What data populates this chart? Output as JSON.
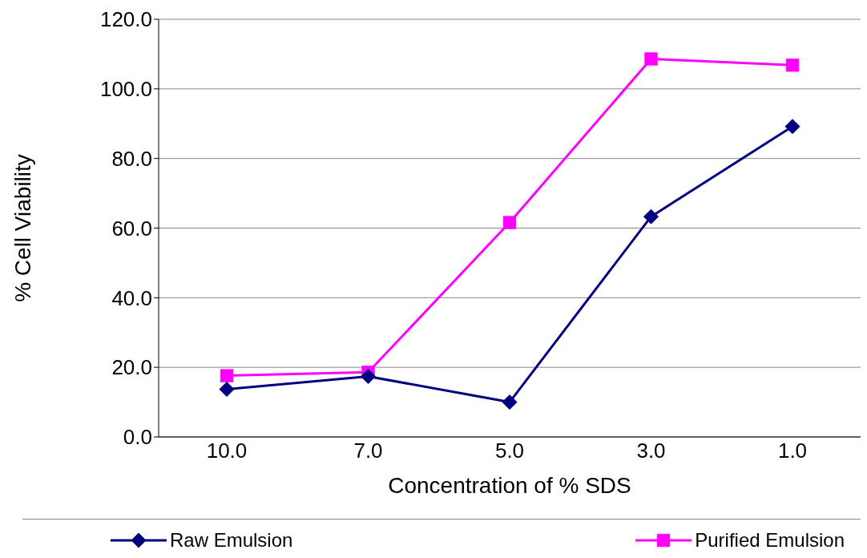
{
  "chart_data": {
    "type": "line",
    "xlabel": "Concentration of % SDS",
    "ylabel": "% Cell Viability",
    "categories": [
      "10.0",
      "7.0",
      "5.0",
      "3.0",
      "1.0"
    ],
    "series": [
      {
        "name": "Raw Emulsion",
        "color": "#000080",
        "marker": "diamond",
        "values": [
          13.7,
          17.4,
          10.0,
          63.3,
          89.2
        ]
      },
      {
        "name": "Purified Emulsion",
        "color": "#ff00ff",
        "marker": "square",
        "values": [
          17.6,
          18.6,
          61.6,
          108.6,
          106.8
        ]
      }
    ],
    "ylim": [
      0,
      120
    ],
    "yticks": [
      {
        "value": 0,
        "label": "0.0"
      },
      {
        "value": 20,
        "label": "20.0"
      },
      {
        "value": 40,
        "label": "40.0"
      },
      {
        "value": 60,
        "label": "60.0"
      },
      {
        "value": 80,
        "label": "80.0"
      },
      {
        "value": 100,
        "label": "100.0"
      },
      {
        "value": 120,
        "label": "120.0"
      }
    ],
    "grid": "y",
    "legend": "bottom",
    "line_style": "solid"
  }
}
